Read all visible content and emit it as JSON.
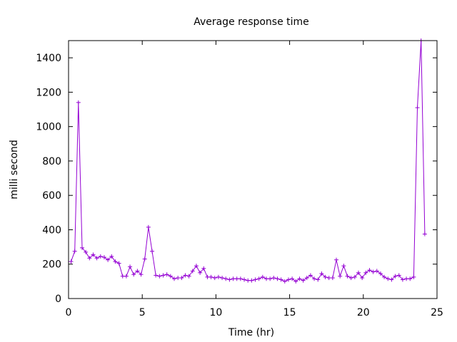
{
  "chart_data": {
    "type": "line",
    "title": "Average response time",
    "xlabel": "Time (hr)",
    "ylabel": "milli second",
    "xlim": [
      0,
      25
    ],
    "ylim": [
      0,
      1500
    ],
    "xticks": [
      0,
      5,
      10,
      15,
      20,
      25
    ],
    "yticks": [
      0,
      200,
      400,
      600,
      800,
      1000,
      1200,
      1400
    ],
    "grid": false,
    "legend": "none",
    "line_color": "#9400d3",
    "series": [
      {
        "name": "",
        "x": [
          0.17,
          0.42,
          0.67,
          0.92,
          1.17,
          1.42,
          1.67,
          1.92,
          2.17,
          2.42,
          2.67,
          2.92,
          3.17,
          3.42,
          3.67,
          3.92,
          4.17,
          4.42,
          4.67,
          4.92,
          5.17,
          5.42,
          5.67,
          5.92,
          6.17,
          6.42,
          6.67,
          6.92,
          7.17,
          7.42,
          7.67,
          7.92,
          8.17,
          8.42,
          8.67,
          8.92,
          9.17,
          9.42,
          9.67,
          9.92,
          10.17,
          10.42,
          10.67,
          10.92,
          11.17,
          11.42,
          11.67,
          11.92,
          12.17,
          12.42,
          12.67,
          12.92,
          13.17,
          13.42,
          13.67,
          13.92,
          14.17,
          14.42,
          14.67,
          14.92,
          15.17,
          15.42,
          15.67,
          15.92,
          16.17,
          16.42,
          16.67,
          16.92,
          17.17,
          17.42,
          17.67,
          17.92,
          18.17,
          18.42,
          18.67,
          18.92,
          19.17,
          19.42,
          19.67,
          19.92,
          20.17,
          20.42,
          20.67,
          20.92,
          21.17,
          21.42,
          21.67,
          21.92,
          22.17,
          22.42,
          22.67,
          22.92,
          23.17,
          23.42,
          23.67,
          23.92,
          24.17
        ],
        "y": [
          215,
          275,
          1140,
          295,
          270,
          235,
          255,
          235,
          245,
          240,
          225,
          245,
          215,
          205,
          130,
          130,
          185,
          140,
          160,
          140,
          230,
          415,
          275,
          135,
          130,
          135,
          140,
          130,
          115,
          120,
          120,
          135,
          130,
          160,
          190,
          150,
          175,
          125,
          125,
          120,
          125,
          120,
          115,
          110,
          115,
          115,
          115,
          110,
          105,
          105,
          110,
          115,
          125,
          115,
          115,
          120,
          115,
          110,
          100,
          110,
          115,
          100,
          115,
          105,
          120,
          135,
          115,
          110,
          145,
          125,
          120,
          120,
          225,
          130,
          190,
          130,
          120,
          125,
          150,
          120,
          150,
          165,
          155,
          160,
          145,
          125,
          115,
          110,
          130,
          135,
          110,
          115,
          115,
          125,
          1110,
          1500,
          375
        ]
      }
    ]
  }
}
